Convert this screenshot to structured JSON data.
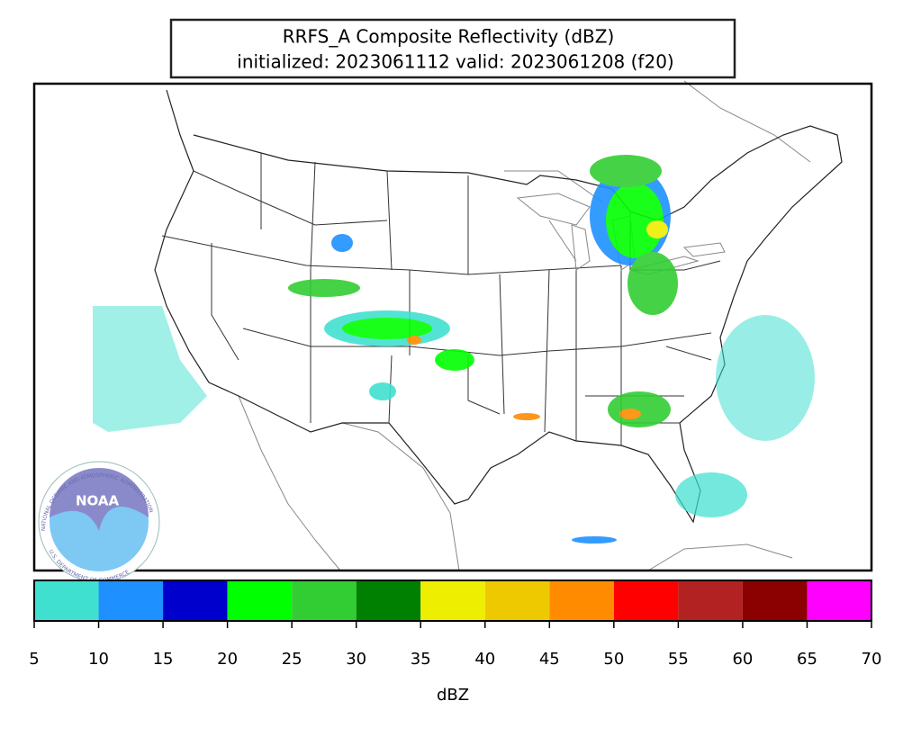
{
  "title": {
    "line1": "RRFS_A Composite Reflectivity (dBZ)",
    "line2": "initialized: 2023061112 valid: 2023061208 (f20)"
  },
  "logo": {
    "name": "NOAA",
    "ring_top": "NATIONAL OCEANIC AND ATMOSPHERIC ADMINISTRATION",
    "ring_bottom": "U.S. DEPARTMENT OF COMMERCE"
  },
  "colorbar": {
    "ticks": [
      5,
      10,
      15,
      20,
      25,
      30,
      35,
      40,
      45,
      50,
      55,
      60,
      65,
      70
    ],
    "colors": [
      "#40e0d0",
      "#1e90ff",
      "#0000cd",
      "#00ff00",
      "#32cd32",
      "#008000",
      "#eeee00",
      "#eec900",
      "#ff8c00",
      "#ff0000",
      "#b22222",
      "#8b0000",
      "#ff00ff"
    ],
    "label": "dBZ"
  }
}
